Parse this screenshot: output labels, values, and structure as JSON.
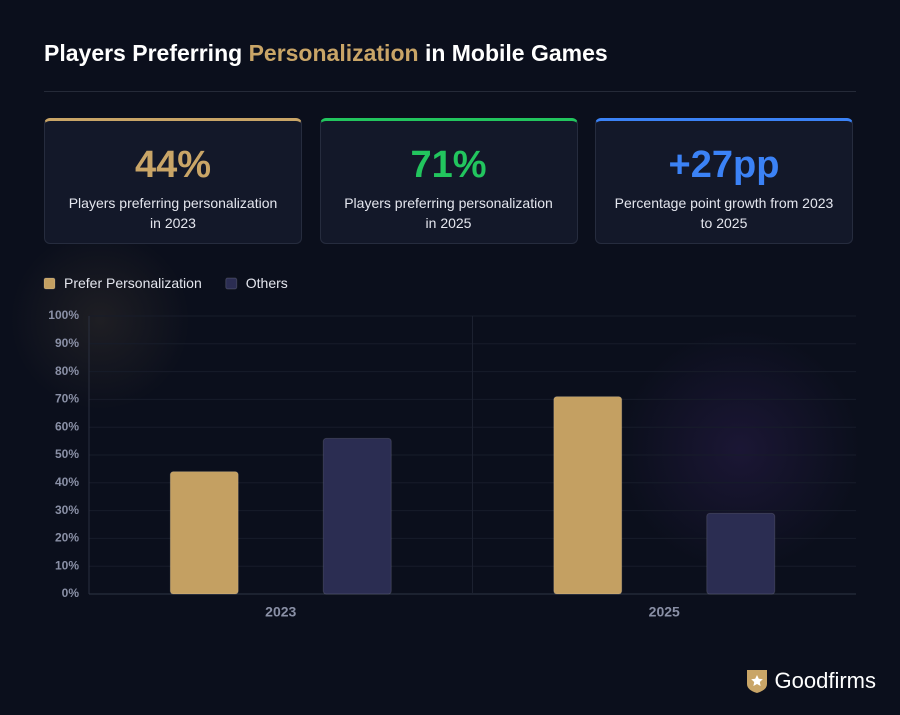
{
  "header": {
    "title_start": "Players Preferring",
    "title_highlight": "Personalization",
    "title_end": "in Mobile Games"
  },
  "cards": [
    {
      "value": "44%",
      "label": "Players preferring personalization in 2023",
      "color": "#c9a567"
    },
    {
      "value": "71%",
      "label": "Players preferring personalization in 2025",
      "color": "#22c55e"
    },
    {
      "value": "+27pp",
      "label": "Percentage point growth from 2023 to 2025",
      "color": "#3b82f6"
    }
  ],
  "chart_data": {
    "type": "bar",
    "categories": [
      "2023",
      "2025"
    ],
    "series": [
      {
        "name": "Prefer Personalization",
        "color": "#c4a062",
        "values": [
          44,
          71
        ]
      },
      {
        "name": "Others",
        "color": "#2b2d52",
        "values": [
          56,
          29
        ]
      }
    ],
    "ylim": [
      0,
      100
    ],
    "yticks": [
      {
        "value": 0,
        "label": "0%"
      },
      {
        "value": 10,
        "label": "10%"
      },
      {
        "value": 20,
        "label": "20%"
      },
      {
        "value": 30,
        "label": "30%"
      },
      {
        "value": 40,
        "label": "40%"
      },
      {
        "value": 50,
        "label": "50%"
      },
      {
        "value": 60,
        "label": "60%"
      },
      {
        "value": 70,
        "label": "70%"
      },
      {
        "value": 80,
        "label": "80%"
      },
      {
        "value": 90,
        "label": "90%"
      },
      {
        "value": 100,
        "label": "100%"
      }
    ],
    "grid": true
  },
  "brand": "Goodfirms"
}
